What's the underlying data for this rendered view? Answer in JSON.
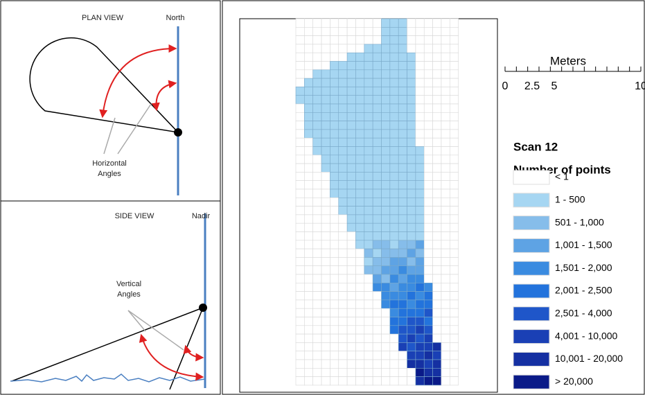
{
  "plan_view": {
    "title": "PLAN VIEW",
    "reference": "North",
    "label": [
      "Horizontal",
      "Angles"
    ]
  },
  "side_view": {
    "title": "SIDE VIEW",
    "reference": "Nadir",
    "label": [
      "Vertical",
      "Angles"
    ]
  },
  "scale_bar": {
    "title": "Meters",
    "labels": [
      "0",
      "2.5",
      "5",
      "10"
    ]
  },
  "legend": {
    "title": "Scan 12",
    "subtitle": "Number of points",
    "items": [
      {
        "label": "< 1",
        "color": "#ffffff"
      },
      {
        "label": "1 - 500",
        "color": "#a6d6f2"
      },
      {
        "label": "501 - 1,000",
        "color": "#86bdea"
      },
      {
        "label": "1,001 - 1,500",
        "color": "#5ea3e4"
      },
      {
        "label": "1,501 - 2,000",
        "color": "#3a8be0"
      },
      {
        "label": "2,001 - 2,500",
        "color": "#2373dc"
      },
      {
        "label": "2,501 - 4,000",
        "color": "#1f56c9"
      },
      {
        "label": "4,001 - 10,000",
        "color": "#1a40b5"
      },
      {
        "label": "10,001 - 20,000",
        "color": "#1530a2"
      },
      {
        "label": "> 20,000",
        "color": "#0a1a88"
      }
    ]
  }
}
